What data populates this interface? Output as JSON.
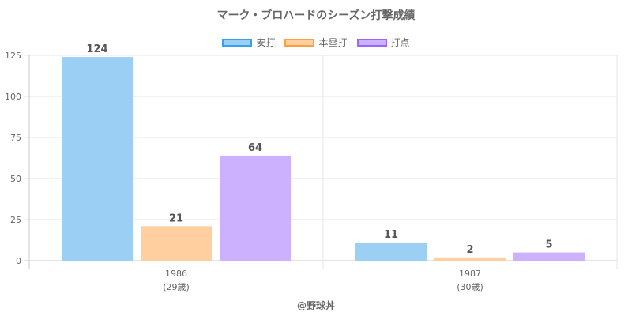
{
  "chart_data": {
    "type": "bar",
    "title": "マーク・ブロハードのシーズン打撃成績",
    "categories": [
      "1986",
      "1987"
    ],
    "category_sublabels": [
      "(29歳)",
      "(30歳)"
    ],
    "series": [
      {
        "name": "安打",
        "values": [
          124,
          11
        ],
        "fill": "#9ccff4",
        "stroke": "#36a2eb"
      },
      {
        "name": "本塁打",
        "values": [
          21,
          2
        ],
        "fill": "#ffcf9f",
        "stroke": "#ff9f40"
      },
      {
        "name": "打点",
        "values": [
          64,
          5
        ],
        "fill": "#ccb1fe",
        "stroke": "#9966ff"
      }
    ],
    "ylim": [
      0,
      125
    ],
    "yticks": [
      0,
      25,
      50,
      75,
      100,
      125
    ],
    "grid": true,
    "legend_position": "top",
    "credit": "@野球丼"
  }
}
